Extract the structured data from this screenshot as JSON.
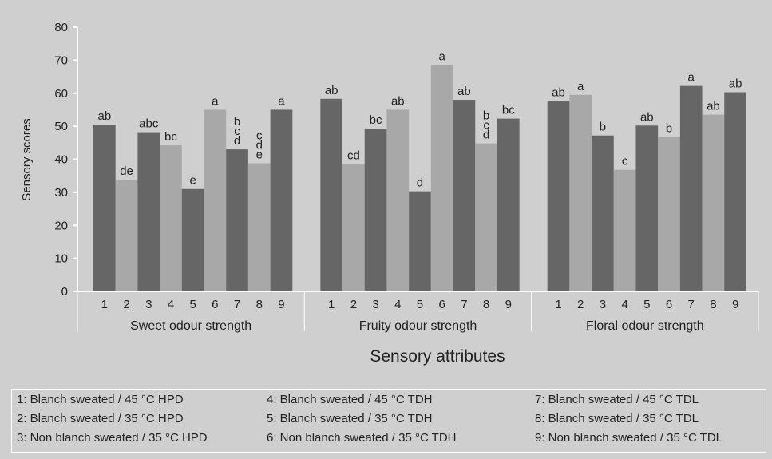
{
  "chart_data": {
    "type": "bar",
    "ylabel": "Sensory scores",
    "xlabel": "Sensory attributes",
    "ylim": [
      0,
      80
    ],
    "yticks": [
      0,
      10,
      20,
      30,
      40,
      50,
      60,
      70,
      80
    ],
    "bar_labels": [
      "1",
      "2",
      "3",
      "4",
      "5",
      "6",
      "7",
      "8",
      "9"
    ],
    "colors": {
      "dark": "#666666",
      "light": "#a8a8a8",
      "background": "#cfcfcf"
    },
    "groups": [
      {
        "name": "Sweet odour strength",
        "values": [
          50.5,
          33.8,
          48.2,
          44.2,
          31.0,
          55.0,
          43.0,
          38.8,
          55.0
        ],
        "letters": [
          "ab",
          "de",
          "abc",
          "bc",
          "e",
          "a",
          "b\nc\nd",
          "c\nd\ne",
          "a"
        ]
      },
      {
        "name": "Fruity odour strength",
        "values": [
          58.3,
          38.5,
          49.3,
          55.0,
          30.3,
          68.5,
          58.0,
          44.8,
          52.3
        ],
        "letters": [
          "ab",
          "cd",
          "bc",
          "ab",
          "d",
          "a",
          "ab",
          "b\nc\nd",
          "bc"
        ]
      },
      {
        "name": "Floral odour strength",
        "values": [
          57.7,
          59.5,
          47.2,
          36.8,
          50.2,
          46.8,
          62.2,
          53.5,
          60.3
        ],
        "letters": [
          "ab",
          "a",
          "b",
          "c",
          "ab",
          "b",
          "a",
          "ab",
          "ab"
        ]
      }
    ],
    "legend": [
      "1: Blanch sweated / 45 °C HPD",
      "2: Blanch sweated / 35 °C HPD",
      "3: Non blanch sweated / 35 °C HPD",
      "4: Blanch sweated / 45 °C TDH",
      "5: Blanch sweated / 35 °C TDH",
      "6: Non blanch sweated / 35 °C TDH",
      "7: Blanch sweated / 45 °C TDL",
      "8: Blanch sweated / 35 °C TDL",
      "9: Non blanch sweated / 35 °C TDL"
    ]
  }
}
